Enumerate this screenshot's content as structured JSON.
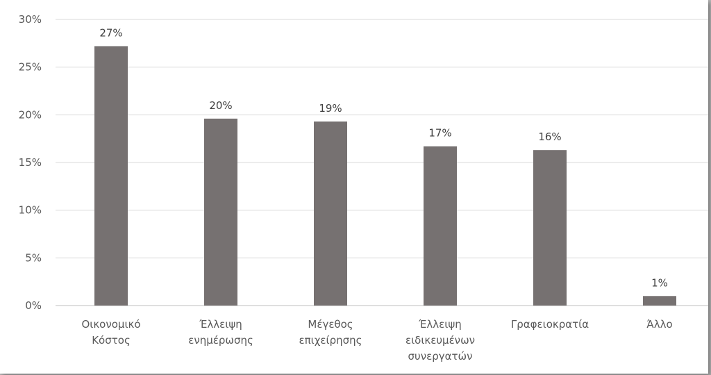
{
  "chart_data": {
    "type": "bar",
    "categories": [
      [
        "Οικονομικό",
        "Κόστος"
      ],
      [
        "Έλλειψη",
        "ενημέρωσης"
      ],
      [
        "Μέγεθος",
        "επιχείρησης"
      ],
      [
        "Έλλειψη",
        "ειδικευμένων",
        "συνεργατών"
      ],
      [
        "Γραφειοκρατία"
      ],
      [
        "Άλλο"
      ]
    ],
    "values": [
      27.2,
      19.6,
      19.3,
      16.7,
      16.3,
      1.0
    ],
    "data_labels": [
      "27%",
      "20%",
      "19%",
      "17%",
      "16%",
      "1%"
    ],
    "ylim": [
      0,
      30
    ],
    "y_ticks": [
      0,
      5,
      10,
      15,
      20,
      25,
      30
    ],
    "y_tick_labels": [
      "0%",
      "5%",
      "10%",
      "15%",
      "20%",
      "25%",
      "30%"
    ],
    "grid": true,
    "legend": "none",
    "bar_color": "#767171",
    "grid_color": "#d9d9d9",
    "title": "",
    "xlabel": "",
    "ylabel": ""
  }
}
